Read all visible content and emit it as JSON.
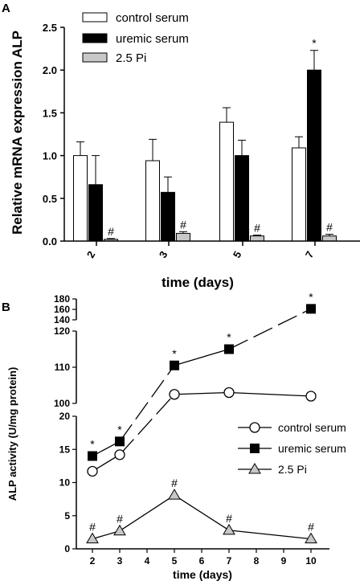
{
  "panel_a": {
    "letter": "A",
    "legend": [
      "control serum",
      "uremic serum",
      "2.5 Pi"
    ]
  },
  "panel_b": {
    "letter": "B",
    "legend": [
      "control serum",
      "uremic serum",
      "2.5 Pi"
    ]
  },
  "chart_data": [
    {
      "type": "bar",
      "panel": "A",
      "title": "",
      "xlabel": "time (days)",
      "ylabel": "Relative mRNA expression ALP",
      "ylim": [
        0,
        2.5
      ],
      "yticks": [
        "0.0",
        "0.5",
        "1.0",
        "1.5",
        "2.0",
        "2.5"
      ],
      "categories": [
        "2",
        "3",
        "5",
        "7"
      ],
      "legend_position": "top-left",
      "series": [
        {
          "name": "control serum",
          "color": "#ffffff",
          "values": [
            1.0,
            0.94,
            1.39,
            1.09
          ],
          "errors": [
            0.16,
            0.25,
            0.17,
            0.13
          ],
          "annotations": [
            "",
            "",
            "",
            ""
          ]
        },
        {
          "name": "uremic serum",
          "color": "#000000",
          "values": [
            0.66,
            0.57,
            1.0,
            2.0
          ],
          "errors": [
            0.34,
            0.18,
            0.18,
            0.23
          ],
          "annotations": [
            "",
            "",
            "",
            "*"
          ]
        },
        {
          "name": "2.5 Pi",
          "color": "#c8c8c8",
          "values": [
            0.02,
            0.09,
            0.06,
            0.06
          ],
          "errors": [
            0.01,
            0.02,
            0.01,
            0.02
          ],
          "annotations": [
            "#",
            "#",
            "#",
            "#"
          ]
        }
      ]
    },
    {
      "type": "line",
      "panel": "B",
      "title": "",
      "xlabel": "time (days)",
      "ylabel": "ALP activity (U/mg protein)",
      "x_ticks": [
        "2",
        "3",
        "4",
        "5",
        "6",
        "7",
        "8",
        "9",
        "10"
      ],
      "y_segments": [
        {
          "range": [
            0,
            20
          ],
          "ticks": [
            "0",
            "5",
            "10",
            "15",
            "20"
          ]
        },
        {
          "range": [
            100,
            120
          ],
          "ticks": [
            "100",
            "110",
            "120"
          ]
        },
        {
          "range": [
            140,
            180
          ],
          "ticks": [
            "140",
            "160",
            "180"
          ]
        }
      ],
      "legend_position": "center-right",
      "series": [
        {
          "name": "control serum",
          "marker": "circle-open",
          "x": [
            2,
            3,
            5,
            7,
            10
          ],
          "y": [
            11.7,
            14.2,
            102.5,
            103,
            102
          ],
          "annotations": [
            "",
            "",
            "",
            "",
            ""
          ]
        },
        {
          "name": "uremic serum",
          "marker": "square-filled",
          "x": [
            2,
            3,
            5,
            7,
            10
          ],
          "y": [
            14,
            16.2,
            110.5,
            115,
            161
          ],
          "annotations": [
            "*",
            "*",
            "*",
            "*",
            "*"
          ]
        },
        {
          "name": "2.5 Pi",
          "marker": "triangle-gray",
          "x": [
            2,
            3,
            5,
            7,
            10
          ],
          "y": [
            1.5,
            2.7,
            8.1,
            2.8,
            1.5
          ],
          "annotations": [
            "#",
            "#",
            "#",
            "#",
            "#"
          ]
        }
      ]
    }
  ]
}
